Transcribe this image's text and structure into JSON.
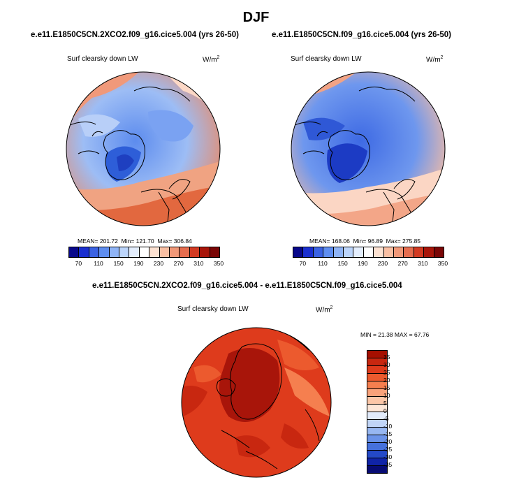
{
  "season_title": "DJF",
  "panels": [
    {
      "case_title": "e.e11.E1850C5CN.2XCO2.f09_g16.cice5.004 (yrs 26-50)",
      "variable": "Surf clearsky down LW",
      "units_base": "W/m",
      "units_exp": "2",
      "mean_label": "MEAN= 201.72",
      "min_label": "Min= 121.70",
      "max_label": "Max= 306.84"
    },
    {
      "case_title": "e.e11.E1850C5CN.f09_g16.cice5.004 (yrs 26-50)",
      "variable": "Surf clearsky down LW",
      "units_base": "W/m",
      "units_exp": "2",
      "mean_label": "MEAN= 168.06",
      "min_label": "Min= 96.89",
      "max_label": "Max= 275.85"
    }
  ],
  "abs_colorbar": {
    "colors": [
      "#08088a",
      "#1a2fd0",
      "#3a62e3",
      "#5f8ef0",
      "#8fb4f6",
      "#bcd5fb",
      "#e4eefd",
      "#ffffff",
      "#fde2d2",
      "#f9bfa3",
      "#f19878",
      "#e66d4f",
      "#d23a22",
      "#a8150a",
      "#7a0606"
    ],
    "tick_labels": [
      "70",
      "110",
      "150",
      "190",
      "230",
      "270",
      "310",
      "350"
    ]
  },
  "diff": {
    "title": "e.e11.E1850C5CN.2XCO2.f09_g16.cice5.004 - e.e11.E1850C5CN.f09_g16.cice5.004",
    "variable": "Surf clearsky down LW",
    "units_base": "W/m",
    "units_exp": "2",
    "minmax_label": "MIN =  21.38 MAX =  67.76",
    "colors": [
      "#a50f00",
      "#c82710",
      "#de3b1c",
      "#ec5a2e",
      "#f57f4f",
      "#f9a27a",
      "#fcc7a8",
      "#fde7d8",
      "#e2ebfb",
      "#c1d5f7",
      "#97b7f1",
      "#6b93e8",
      "#4671dc",
      "#2449c8",
      "#1024a8",
      "#070b73"
    ],
    "tick_labels": [
      "35",
      "30",
      "25",
      "20",
      "15",
      "10",
      "5",
      "0",
      "-5",
      "-10",
      "-15",
      "-20",
      "-25",
      "-30",
      "-35"
    ]
  }
}
